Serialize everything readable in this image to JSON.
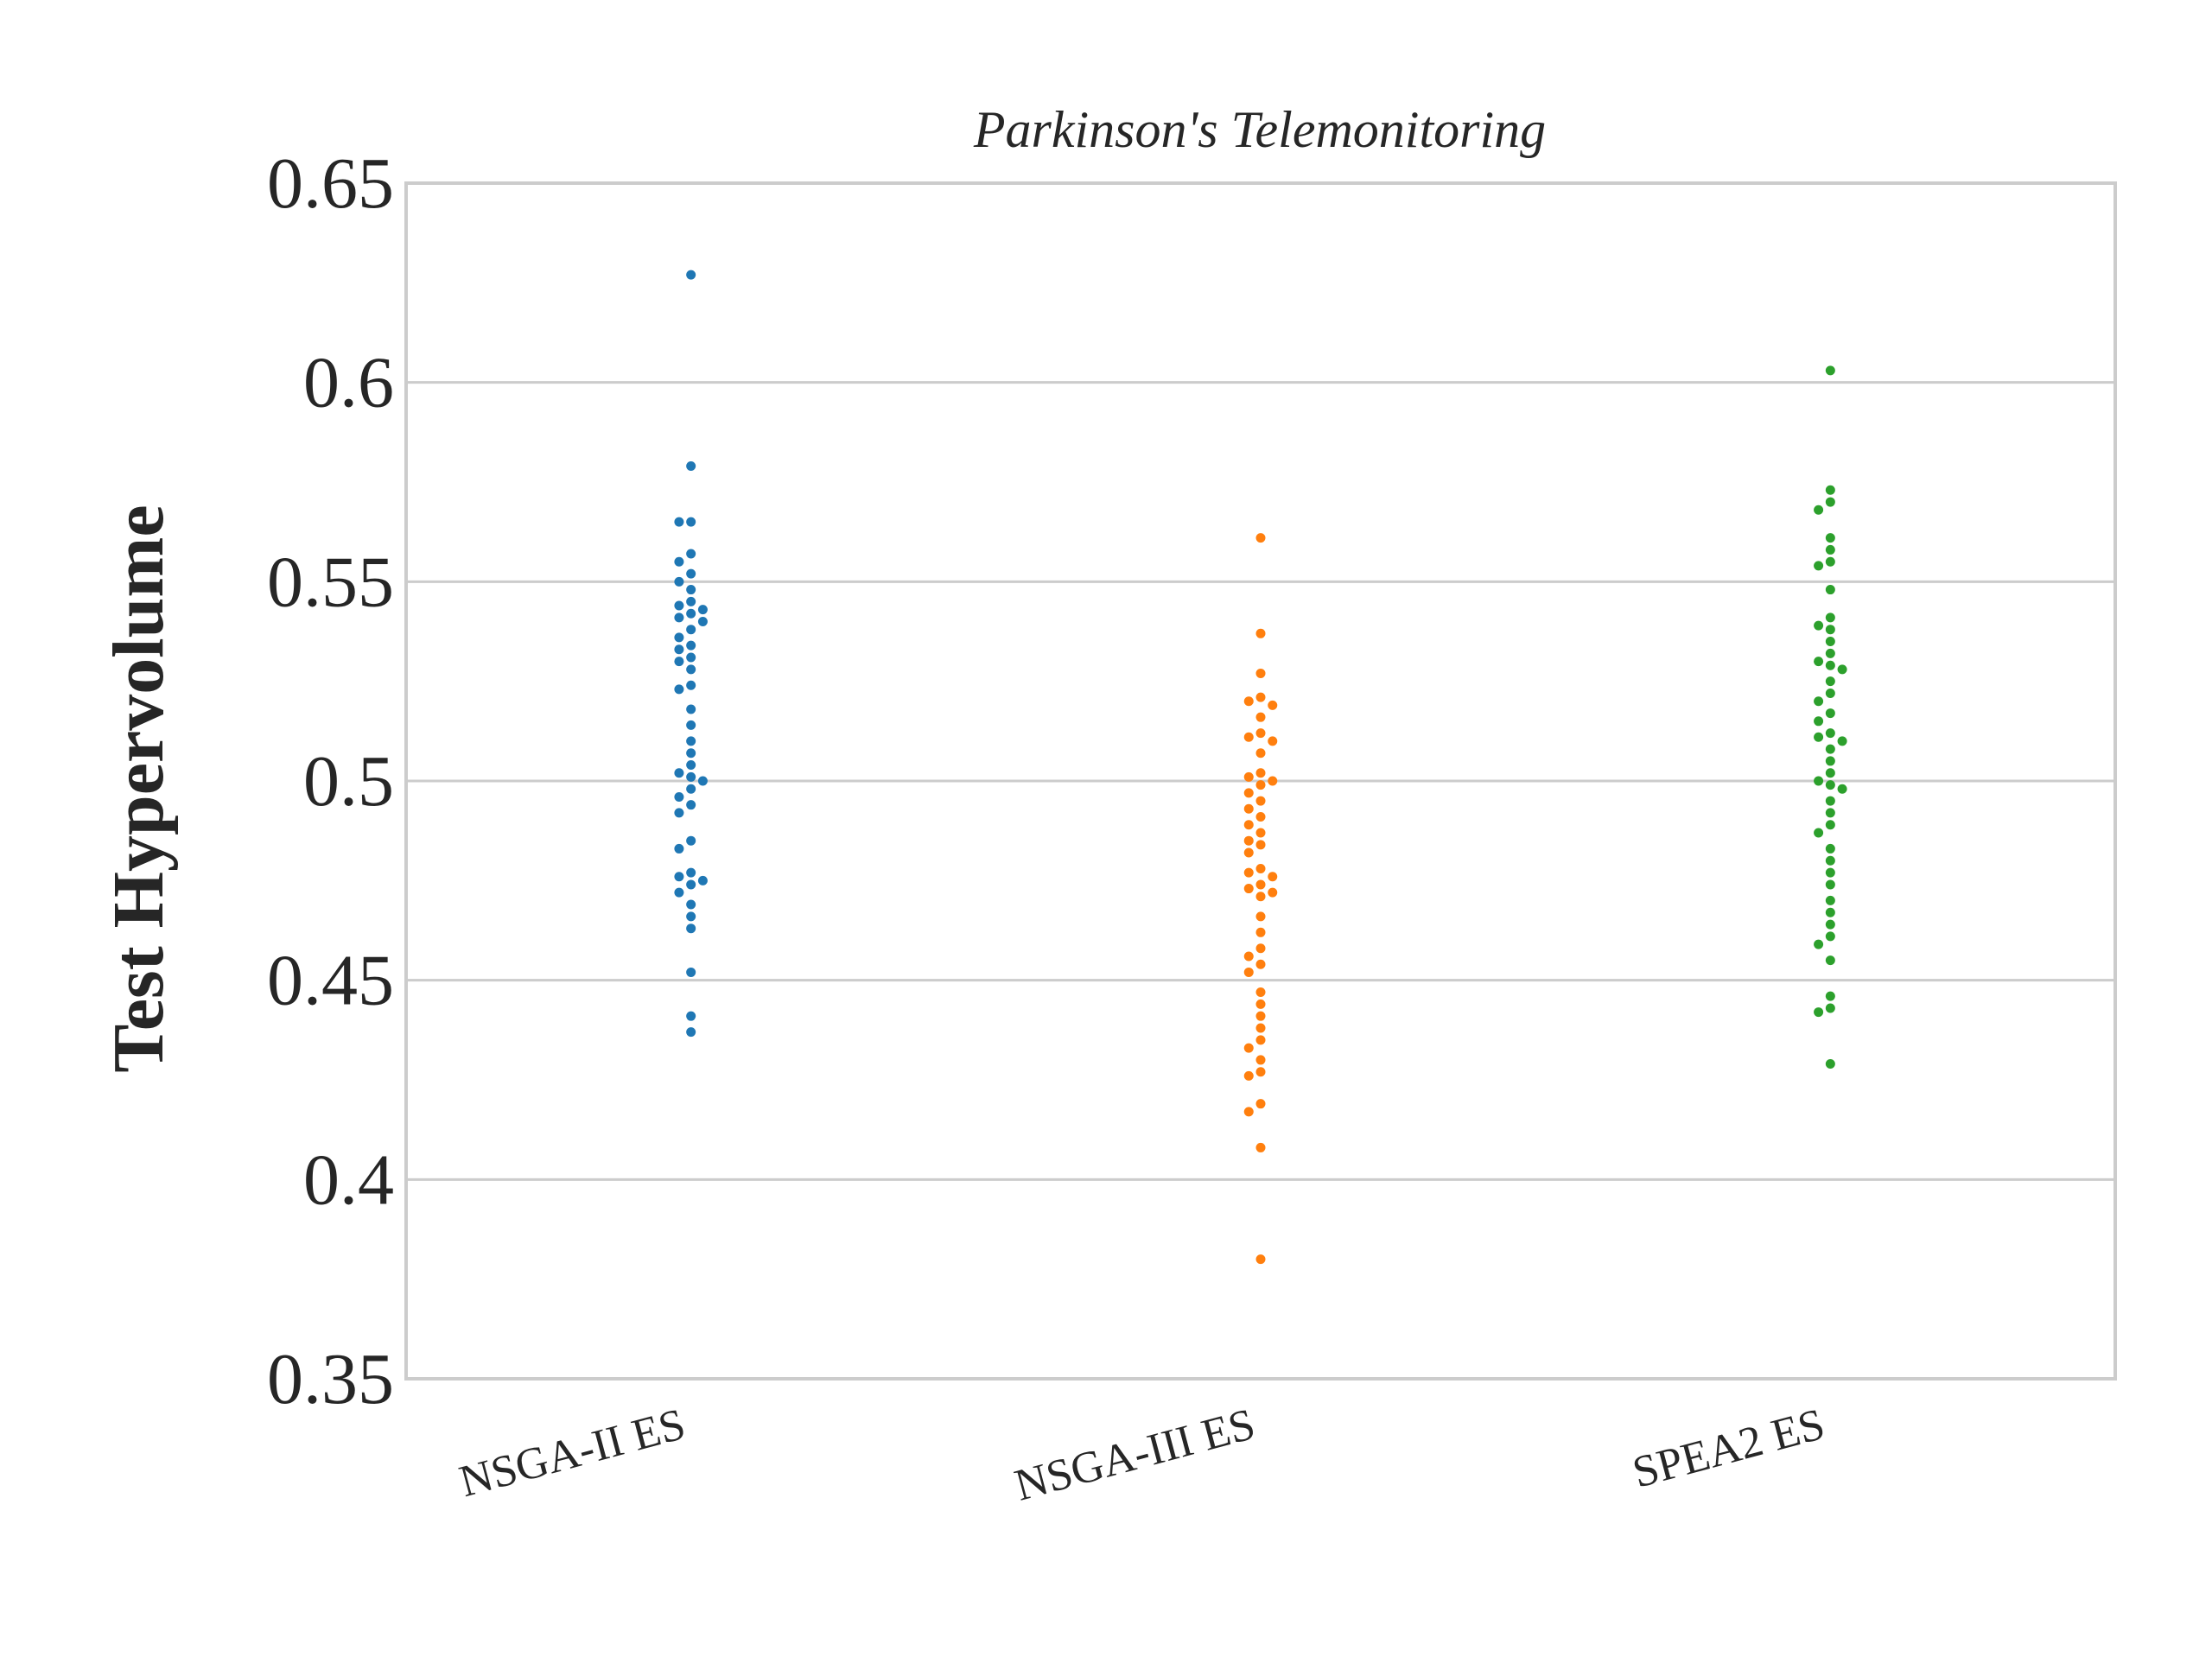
{
  "chart_data": {
    "type": "scatter",
    "title": "Parkinson's Telemonitoring",
    "xlabel": "",
    "ylabel": "Test Hypervolume",
    "ylim": [
      0.35,
      0.65
    ],
    "yticks": [
      "0.35",
      "0.4",
      "0.45",
      "0.5",
      "0.55",
      "0.6",
      "0.65"
    ],
    "grid": true,
    "categories": [
      "NSGA-II ES",
      "NSGA-III ES",
      "SPEA2 ES"
    ],
    "series": [
      {
        "category": "NSGA-II ES",
        "color": "#1f77b4",
        "values": [
          0.627,
          0.579,
          0.565,
          0.565,
          0.557,
          0.555,
          0.552,
          0.55,
          0.548,
          0.545,
          0.544,
          0.543,
          0.542,
          0.541,
          0.54,
          0.538,
          0.536,
          0.534,
          0.533,
          0.531,
          0.53,
          0.528,
          0.524,
          0.523,
          0.518,
          0.514,
          0.51,
          0.507,
          0.504,
          0.502,
          0.501,
          0.5,
          0.498,
          0.496,
          0.494,
          0.492,
          0.485,
          0.483,
          0.477,
          0.476,
          0.475,
          0.474,
          0.472,
          0.469,
          0.466,
          0.463,
          0.452,
          0.441,
          0.437
        ]
      },
      {
        "category": "NSGA-III ES",
        "color": "#ff7f0e",
        "values": [
          0.561,
          0.537,
          0.527,
          0.521,
          0.52,
          0.519,
          0.516,
          0.512,
          0.511,
          0.51,
          0.507,
          0.502,
          0.501,
          0.5,
          0.499,
          0.497,
          0.495,
          0.493,
          0.491,
          0.489,
          0.487,
          0.485,
          0.484,
          0.482,
          0.478,
          0.477,
          0.476,
          0.474,
          0.473,
          0.472,
          0.471,
          0.466,
          0.462,
          0.458,
          0.456,
          0.454,
          0.452,
          0.447,
          0.444,
          0.441,
          0.438,
          0.435,
          0.433,
          0.43,
          0.427,
          0.426,
          0.419,
          0.417,
          0.408,
          0.38
        ]
      },
      {
        "category": "SPEA2 ES",
        "color": "#2ca02c",
        "values": [
          0.603,
          0.573,
          0.57,
          0.568,
          0.561,
          0.558,
          0.555,
          0.554,
          0.548,
          0.541,
          0.539,
          0.538,
          0.535,
          0.532,
          0.53,
          0.529,
          0.528,
          0.525,
          0.522,
          0.52,
          0.517,
          0.515,
          0.512,
          0.511,
          0.51,
          0.508,
          0.505,
          0.502,
          0.5,
          0.499,
          0.498,
          0.495,
          0.492,
          0.489,
          0.487,
          0.483,
          0.48,
          0.477,
          0.474,
          0.47,
          0.467,
          0.464,
          0.461,
          0.459,
          0.455,
          0.446,
          0.443,
          0.442,
          0.429
        ]
      }
    ]
  }
}
